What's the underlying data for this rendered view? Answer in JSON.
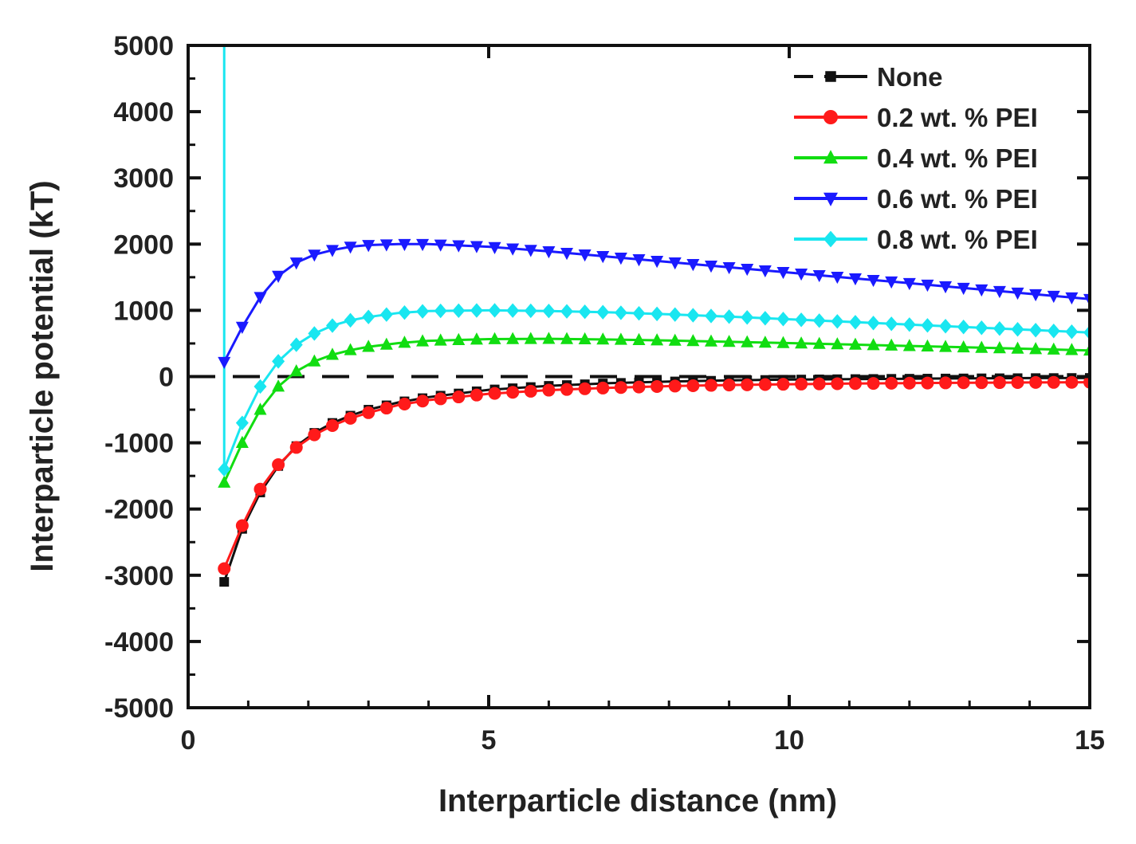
{
  "chart_data": {
    "type": "line",
    "title": "",
    "xlabel": "Interparticle distance (nm)",
    "ylabel": "Interparticle potential (kT)",
    "xlim": [
      0,
      15
    ],
    "ylim": [
      -5000,
      5000
    ],
    "xticks": [
      0,
      5,
      10,
      15
    ],
    "yticks": [
      -5000,
      -4000,
      -3000,
      -2000,
      -1000,
      0,
      1000,
      2000,
      3000,
      4000,
      5000
    ],
    "grid": false,
    "legend_position": "top-right",
    "series": [
      {
        "name": "None",
        "color": "#111111",
        "marker": "square",
        "dashed": true,
        "x": [
          0.6,
          0.9,
          1.2,
          1.5,
          1.8,
          2.1,
          2.4,
          2.7,
          3.0,
          3.5,
          4.0,
          5.0,
          6.0,
          7.0,
          8.0,
          9.0,
          10.0,
          11.0,
          12.0,
          13.0,
          14.0,
          15.0
        ],
        "y": [
          -3100,
          -2300,
          -1750,
          -1350,
          -1050,
          -850,
          -700,
          -590,
          -500,
          -390,
          -310,
          -200,
          -140,
          -100,
          -75,
          -58,
          -46,
          -38,
          -32,
          -27,
          -23,
          -20
        ]
      },
      {
        "name": "0.2 wt. % PEI",
        "color": "#ff1a1a",
        "marker": "circle",
        "dashed": false,
        "x": [
          0.6,
          0.9,
          1.2,
          1.5,
          1.8,
          2.1,
          2.4,
          2.7,
          3.0,
          3.5,
          4.0,
          5.0,
          6.0,
          7.0,
          8.0,
          9.0,
          10.0,
          11.0,
          12.0,
          13.0,
          14.0,
          15.0
        ],
        "y": [
          -2900,
          -2250,
          -1700,
          -1330,
          -1070,
          -880,
          -740,
          -630,
          -545,
          -430,
          -355,
          -260,
          -205,
          -170,
          -145,
          -128,
          -115,
          -106,
          -99,
          -93,
          -89,
          -86
        ]
      },
      {
        "name": "0.4 wt. % PEI",
        "color": "#11dd11",
        "marker": "triangle-up",
        "dashed": false,
        "x": [
          0.6,
          0.9,
          1.2,
          1.5,
          1.8,
          2.1,
          2.4,
          2.7,
          3.0,
          3.5,
          4.0,
          5.0,
          6.0,
          7.0,
          8.0,
          9.0,
          10.0,
          11.0,
          12.0,
          13.0,
          14.0,
          15.0
        ],
        "y": [
          -1600,
          -1000,
          -500,
          -150,
          80,
          230,
          330,
          400,
          450,
          505,
          540,
          565,
          570,
          560,
          545,
          525,
          505,
          485,
          462,
          440,
          418,
          395
        ]
      },
      {
        "name": "0.6 wt. % PEI",
        "color": "#1a1aff",
        "marker": "triangle-down",
        "dashed": false,
        "x": [
          0.6,
          0.9,
          1.2,
          1.5,
          1.8,
          2.1,
          2.4,
          2.7,
          3.0,
          3.5,
          4.0,
          5.0,
          6.0,
          7.0,
          8.0,
          9.0,
          10.0,
          11.0,
          12.0,
          13.0,
          14.0,
          15.0
        ],
        "y": [
          220,
          750,
          1200,
          1520,
          1720,
          1840,
          1910,
          1960,
          1985,
          2000,
          2000,
          1960,
          1890,
          1810,
          1730,
          1650,
          1570,
          1490,
          1410,
          1330,
          1250,
          1170
        ]
      },
      {
        "name": "0.8 wt. % PEI",
        "color": "#19e6f0",
        "marker": "diamond",
        "dashed": false,
        "x": [
          0.6,
          0.9,
          1.2,
          1.5,
          1.8,
          2.1,
          2.4,
          2.7,
          3.0,
          3.5,
          4.0,
          5.0,
          6.0,
          7.0,
          8.0,
          9.0,
          10.0,
          11.0,
          12.0,
          13.0,
          14.0,
          15.0
        ],
        "y": [
          -1400,
          -700,
          -150,
          230,
          480,
          650,
          770,
          850,
          900,
          960,
          990,
          1000,
          990,
          970,
          940,
          905,
          865,
          825,
          785,
          745,
          705,
          665
        ]
      }
    ],
    "annotations": [
      {
        "type": "vertical-line",
        "x": 0.6,
        "y_from": -1400,
        "y_to": 5000,
        "color": "#19e6f0"
      },
      {
        "type": "zero-line",
        "y": 0,
        "dashed": true,
        "color": "#111111"
      }
    ]
  }
}
